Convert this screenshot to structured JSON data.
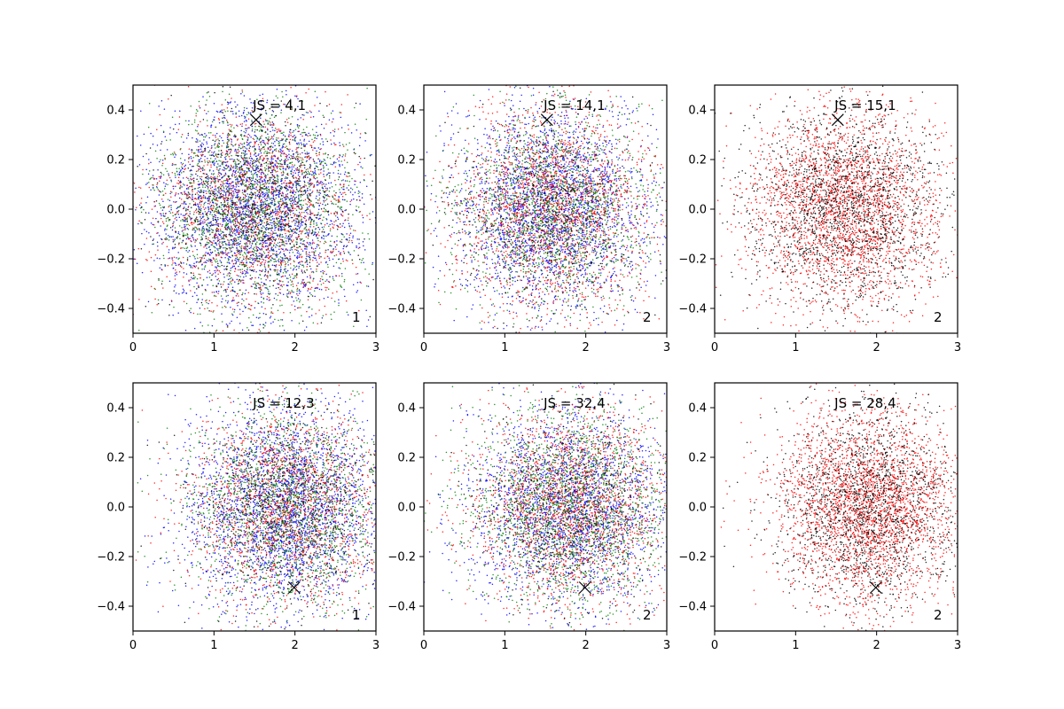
{
  "chart_data": [
    {
      "type": "scatter",
      "title": "",
      "xlabel": "",
      "ylabel": "",
      "xlim": [
        0,
        3
      ],
      "ylim": [
        -0.5,
        0.5
      ],
      "xticks": [
        "0",
        "1",
        "2",
        "3"
      ],
      "yticks": [
        "−0.4",
        "−0.2",
        "0.0",
        "0.2",
        "0.4"
      ],
      "annotation": "JS = 4,1",
      "corner_label": "1",
      "marker_x": {
        "x": 1.52,
        "y": 0.36
      },
      "cloud": {
        "center_x": 1.5,
        "center_y": 0.0,
        "sd_x": 0.65,
        "sd_y": 0.2
      },
      "series": [
        {
          "color": "#0000ff",
          "points": 2600
        },
        {
          "color": "#ff0000",
          "points": 1600
        },
        {
          "color": "#008000",
          "points": 1800
        },
        {
          "color": "#000000",
          "points": 700
        }
      ]
    },
    {
      "type": "scatter",
      "title": "",
      "xlabel": "",
      "ylabel": "",
      "xlim": [
        0,
        3
      ],
      "ylim": [
        -0.5,
        0.5
      ],
      "xticks": [
        "0",
        "1",
        "2",
        "3"
      ],
      "yticks": [
        "−0.4",
        "−0.2",
        "0.0",
        "0.2",
        "0.4"
      ],
      "annotation": "JS = 14,1",
      "corner_label": "2",
      "marker_x": {
        "x": 1.52,
        "y": 0.36
      },
      "cloud": {
        "center_x": 1.6,
        "center_y": 0.0,
        "sd_x": 0.6,
        "sd_y": 0.2
      },
      "series": [
        {
          "color": "#0000ff",
          "points": 2400
        },
        {
          "color": "#ff0000",
          "points": 2000
        },
        {
          "color": "#008000",
          "points": 1600
        },
        {
          "color": "#000000",
          "points": 600
        }
      ]
    },
    {
      "type": "scatter",
      "title": "",
      "xlabel": "",
      "ylabel": "",
      "xlim": [
        0,
        3
      ],
      "ylim": [
        -0.5,
        0.5
      ],
      "xticks": [
        "0",
        "1",
        "2",
        "3"
      ],
      "yticks": [
        "−0.4",
        "−0.2",
        "0.0",
        "0.2",
        "0.4"
      ],
      "annotation": "JS = 15,1",
      "corner_label": "2",
      "marker_x": {
        "x": 1.52,
        "y": 0.36
      },
      "cloud": {
        "center_x": 1.6,
        "center_y": 0.0,
        "sd_x": 0.6,
        "sd_y": 0.2
      },
      "series": [
        {
          "color": "#ff0000",
          "points": 2600
        },
        {
          "color": "#000000",
          "points": 1800
        }
      ]
    },
    {
      "type": "scatter",
      "title": "",
      "xlabel": "",
      "ylabel": "",
      "xlim": [
        0,
        3
      ],
      "ylim": [
        -0.5,
        0.5
      ],
      "xticks": [
        "0",
        "1",
        "2",
        "3"
      ],
      "yticks": [
        "−0.4",
        "−0.2",
        "0.0",
        "0.2",
        "0.4"
      ],
      "annotation": "JS = 12,3",
      "corner_label": "1",
      "marker_x": {
        "x": 1.99,
        "y": -0.325
      },
      "cloud": {
        "center_x": 1.9,
        "center_y": 0.0,
        "sd_x": 0.6,
        "sd_y": 0.2
      },
      "series": [
        {
          "color": "#0000ff",
          "points": 2600
        },
        {
          "color": "#ff0000",
          "points": 1700
        },
        {
          "color": "#008000",
          "points": 1700
        },
        {
          "color": "#000000",
          "points": 700
        }
      ]
    },
    {
      "type": "scatter",
      "title": "",
      "xlabel": "",
      "ylabel": "",
      "xlim": [
        0,
        3
      ],
      "ylim": [
        -0.5,
        0.5
      ],
      "xticks": [
        "0",
        "1",
        "2",
        "3"
      ],
      "yticks": [
        "−0.4",
        "−0.2",
        "0.0",
        "0.2",
        "0.4"
      ],
      "annotation": "JS = 32,4",
      "corner_label": "2",
      "marker_x": {
        "x": 1.99,
        "y": -0.325
      },
      "cloud": {
        "center_x": 1.8,
        "center_y": 0.0,
        "sd_x": 0.6,
        "sd_y": 0.2
      },
      "series": [
        {
          "color": "#0000ff",
          "points": 2200
        },
        {
          "color": "#ff0000",
          "points": 2000
        },
        {
          "color": "#008000",
          "points": 1900
        },
        {
          "color": "#000000",
          "points": 600
        }
      ]
    },
    {
      "type": "scatter",
      "title": "",
      "xlabel": "",
      "ylabel": "",
      "xlim": [
        0,
        3
      ],
      "ylim": [
        -0.5,
        0.5
      ],
      "xticks": [
        "0",
        "1",
        "2",
        "3"
      ],
      "yticks": [
        "−0.4",
        "−0.2",
        "0.0",
        "0.2",
        "0.4"
      ],
      "annotation": "JS = 28,4",
      "corner_label": "2",
      "marker_x": {
        "x": 1.99,
        "y": -0.325
      },
      "cloud": {
        "center_x": 1.9,
        "center_y": 0.0,
        "sd_x": 0.55,
        "sd_y": 0.2
      },
      "series": [
        {
          "color": "#ff0000",
          "points": 2800
        },
        {
          "color": "#000000",
          "points": 1700
        }
      ]
    }
  ]
}
